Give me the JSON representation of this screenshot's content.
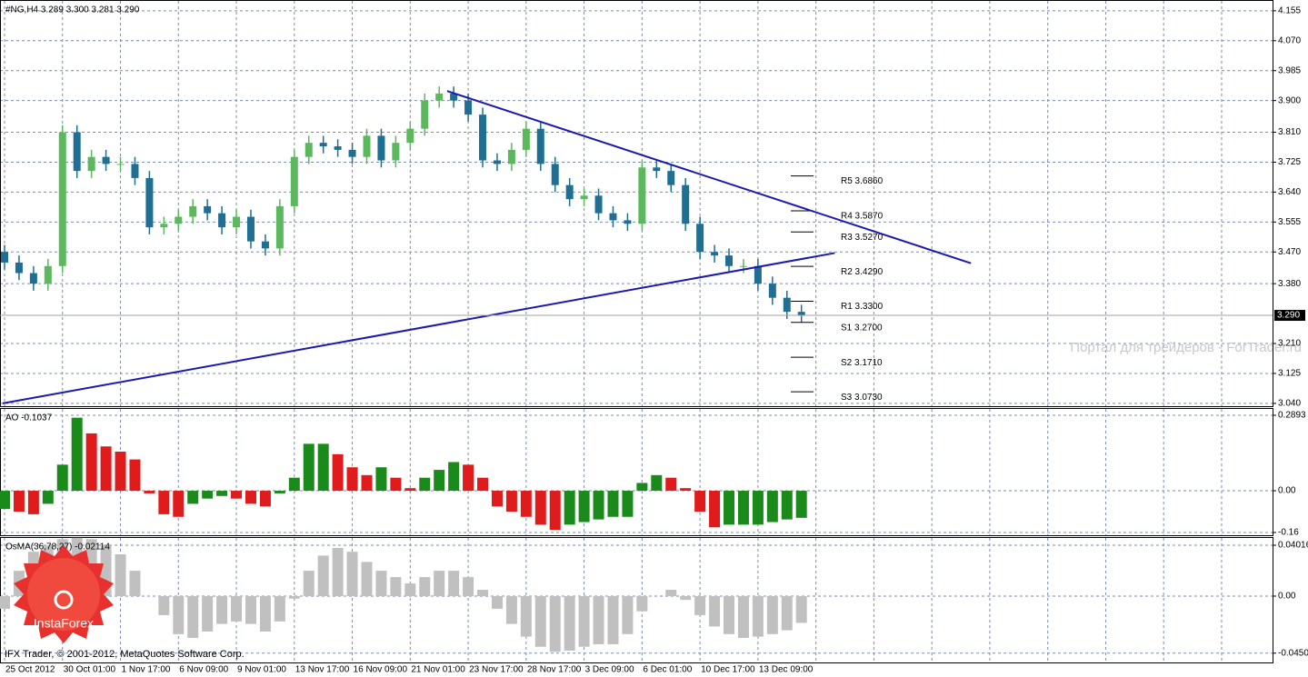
{
  "chart_data": [
    {
      "type": "candlestick",
      "title": "#NG,H4  3.289 3.300 3.281 3.290",
      "categories": [
        "25 Oct 2012",
        null,
        null,
        null,
        "30 Oct 01:00",
        null,
        null,
        null,
        "1 Nov 17:00",
        null,
        null,
        null,
        "6 Nov 09:00",
        null,
        null,
        null,
        "9 Nov 01:00",
        null,
        null,
        null,
        "13 Nov 17:00",
        null,
        null,
        null,
        "16 Nov 09:00",
        null,
        null,
        null,
        "21 Nov 01:00",
        null,
        null,
        null,
        "23 Nov 17:00",
        null,
        null,
        null,
        "28 Nov 17:00",
        null,
        null,
        null,
        "3 Dec 09:00",
        null,
        null,
        null,
        "6 Dec 01:00",
        null,
        null,
        null,
        "10 Dec 17:00",
        null,
        null,
        null,
        "13 Dec 09:00",
        null,
        null,
        null
      ],
      "open": [
        3.47,
        3.44,
        3.41,
        3.38,
        3.43,
        3.81,
        3.7,
        3.74,
        3.72,
        3.72,
        3.68,
        3.54,
        3.55,
        3.57,
        3.6,
        3.58,
        3.54,
        3.57,
        3.5,
        3.48,
        3.6,
        3.74,
        3.78,
        3.77,
        3.76,
        3.74,
        3.8,
        3.73,
        3.78,
        3.82,
        3.9,
        3.92,
        3.9,
        3.86,
        3.73,
        3.72,
        3.76,
        3.82,
        3.72,
        3.66,
        3.62,
        3.63,
        3.58,
        3.56,
        3.55,
        3.71,
        3.7,
        3.66,
        3.55,
        3.47,
        3.46,
        3.43,
        3.43,
        3.38,
        3.34,
        3.3
      ],
      "high": [
        3.49,
        3.46,
        3.43,
        3.45,
        3.83,
        3.83,
        3.76,
        3.76,
        3.74,
        3.74,
        3.7,
        3.57,
        3.59,
        3.62,
        3.62,
        3.6,
        3.59,
        3.59,
        3.52,
        3.62,
        3.76,
        3.8,
        3.8,
        3.79,
        3.78,
        3.82,
        3.82,
        3.8,
        3.84,
        3.92,
        3.94,
        3.94,
        3.92,
        3.88,
        3.75,
        3.78,
        3.84,
        3.84,
        3.74,
        3.68,
        3.65,
        3.65,
        3.6,
        3.58,
        3.73,
        3.73,
        3.72,
        3.68,
        3.57,
        3.49,
        3.48,
        3.45,
        3.45,
        3.4,
        3.36,
        3.32
      ],
      "low": [
        3.42,
        3.39,
        3.36,
        3.36,
        3.41,
        3.68,
        3.68,
        3.7,
        3.7,
        3.66,
        3.52,
        3.52,
        3.53,
        3.55,
        3.56,
        3.52,
        3.52,
        3.48,
        3.46,
        3.46,
        3.58,
        3.72,
        3.75,
        3.74,
        3.72,
        3.72,
        3.71,
        3.71,
        3.76,
        3.8,
        3.88,
        3.88,
        3.84,
        3.71,
        3.7,
        3.7,
        3.74,
        3.7,
        3.64,
        3.6,
        3.6,
        3.56,
        3.54,
        3.53,
        3.53,
        3.68,
        3.64,
        3.53,
        3.45,
        3.44,
        3.41,
        3.41,
        3.36,
        3.32,
        3.28,
        3.27
      ],
      "close": [
        3.44,
        3.41,
        3.38,
        3.43,
        3.81,
        3.7,
        3.74,
        3.72,
        3.72,
        3.68,
        3.54,
        3.55,
        3.57,
        3.6,
        3.58,
        3.54,
        3.57,
        3.5,
        3.48,
        3.6,
        3.74,
        3.78,
        3.77,
        3.76,
        3.74,
        3.8,
        3.73,
        3.78,
        3.82,
        3.9,
        3.92,
        3.9,
        3.86,
        3.73,
        3.72,
        3.76,
        3.82,
        3.72,
        3.66,
        3.62,
        3.63,
        3.58,
        3.56,
        3.55,
        3.71,
        3.7,
        3.66,
        3.55,
        3.47,
        3.46,
        3.43,
        3.43,
        3.38,
        3.34,
        3.3,
        3.29
      ],
      "up_color": "#5cb85c",
      "down_color": "#1f6f94",
      "ylim": [
        3.032,
        4.183
      ],
      "yticks": [
        4.155,
        {
          "value": 4.07,
          "label": "4.070"
        },
        3.985,
        {
          "value": 3.9,
          "label": "3.900"
        },
        {
          "value": 3.81,
          "label": "3.810"
        },
        3.725,
        {
          "value": 3.64,
          "label": "3.640"
        },
        3.555,
        {
          "value": 3.47,
          "label": "3.470"
        },
        {
          "value": 3.38,
          "label": "3.380"
        },
        {
          "value": 3.21,
          "label": "3.210"
        },
        3.125,
        {
          "value": 3.04,
          "label": "3.040"
        }
      ],
      "last_price": {
        "value": 3.29,
        "label": "3.290"
      },
      "levels": [
        {
          "label": "R5 3.6860",
          "value": 3.686
        },
        {
          "label": "R4 3.5870",
          "value": 3.587
        },
        {
          "label": "R3 3.5270",
          "value": 3.527
        },
        {
          "label": "R2 3.4290",
          "value": 3.429
        },
        {
          "label": "R1 3.3300",
          "value": 3.33
        },
        {
          "label": "S1 3.2700",
          "value": 3.27
        },
        {
          "label": "S2 3.1710",
          "value": 3.171
        },
        {
          "label": "S3 3.0730",
          "value": 3.073
        }
      ],
      "trendlines": [
        {
          "x": [
            30.55,
            66.7
          ],
          "y": [
            3.927,
            3.438
          ],
          "color": "#1a1ab0"
        },
        {
          "x": [
            -0.13,
            57.3
          ],
          "y": [
            3.04,
            3.467
          ],
          "color": "#1a1ab0"
        }
      ],
      "grid": true
    },
    {
      "type": "bar",
      "title": "AO -0.1037",
      "values": [
        -0.07,
        -0.08,
        -0.09,
        -0.05,
        0.1,
        0.28,
        0.22,
        0.17,
        0.15,
        0.12,
        -0.01,
        -0.09,
        -0.1,
        -0.05,
        -0.03,
        -0.02,
        -0.03,
        -0.05,
        -0.06,
        -0.01,
        0.05,
        0.18,
        0.18,
        0.14,
        0.09,
        0.06,
        0.09,
        0.05,
        0.01,
        0.05,
        0.08,
        0.11,
        0.1,
        0.05,
        -0.06,
        -0.08,
        -0.1,
        -0.13,
        -0.15,
        -0.13,
        -0.12,
        -0.11,
        -0.1,
        -0.1,
        0.03,
        0.06,
        0.05,
        0.01,
        -0.08,
        -0.14,
        -0.13,
        -0.13,
        -0.13,
        -0.12,
        -0.11,
        -0.1037
      ],
      "up_color": "#1a8a1a",
      "down_color": "#e01b1b",
      "ylim": [
        -0.174,
        0.3137
      ],
      "yticks": [
        0.2893,
        {
          "value": 0,
          "label": "0.00"
        },
        -0.16
      ],
      "grid": true
    },
    {
      "type": "bar",
      "title": "OsMA(36,78,27) -0.02114",
      "values": [
        -0.01,
        0.02,
        0.035,
        0.04,
        0.045,
        0.046,
        0.045,
        0.04,
        0.033,
        0.02,
        0.0,
        -0.015,
        -0.03,
        -0.033,
        -0.028,
        -0.022,
        -0.02,
        -0.022,
        -0.028,
        -0.02,
        -0.002,
        0.02,
        0.032,
        0.038,
        0.035,
        0.027,
        0.02,
        0.015,
        0.01,
        0.015,
        0.02,
        0.02,
        0.015,
        0.005,
        -0.01,
        -0.022,
        -0.032,
        -0.04,
        -0.044,
        -0.043,
        -0.04,
        -0.038,
        -0.038,
        -0.03,
        -0.012,
        0.0,
        0.005,
        -0.003,
        -0.015,
        -0.024,
        -0.03,
        -0.033,
        -0.032,
        -0.03,
        -0.027,
        -0.02114
      ],
      "color": "#c0c0c0",
      "ylim": [
        -0.0531,
        0.0459
      ],
      "yticks": [
        0.04016,
        {
          "value": 0,
          "label": "0.00"
        },
        -0.04505
      ],
      "grid": true
    }
  ],
  "watermark": "Портал для трейдеров - ForTrader.ru",
  "footer": "IFX Trader, © 2001-2012, MetaQuotes Software Corp.",
  "logo_text": "InstaForex"
}
